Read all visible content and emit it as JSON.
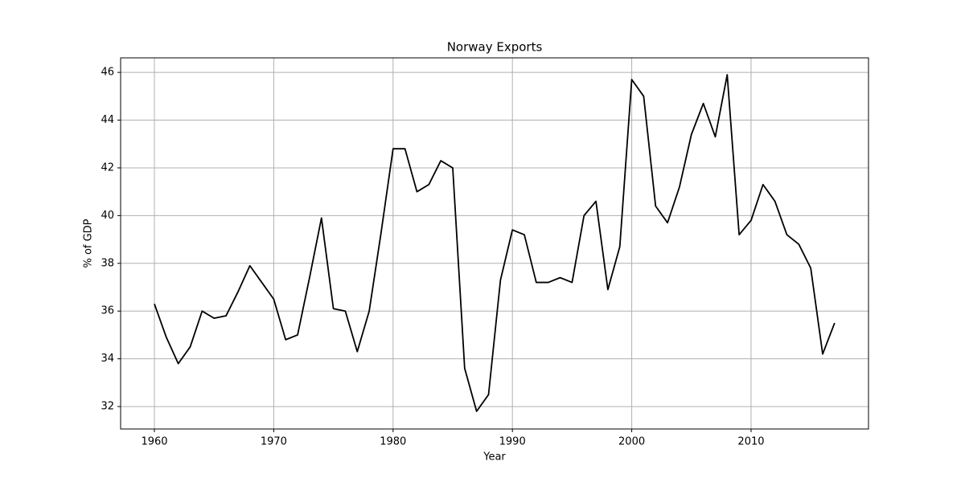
{
  "chart_data": {
    "type": "line",
    "title": "Norway Exports",
    "x_label": "Year",
    "y_label": "% of GDP",
    "x": [
      1960,
      1961,
      1962,
      1963,
      1964,
      1965,
      1966,
      1967,
      1968,
      1969,
      1970,
      1971,
      1972,
      1973,
      1974,
      1975,
      1976,
      1977,
      1978,
      1979,
      1980,
      1981,
      1982,
      1983,
      1984,
      1985,
      1986,
      1987,
      1988,
      1989,
      1990,
      1991,
      1992,
      1993,
      1994,
      1995,
      1996,
      1997,
      1998,
      1999,
      2000,
      2001,
      2002,
      2003,
      2004,
      2005,
      2006,
      2007,
      2008,
      2009,
      2010,
      2011,
      2012,
      2013,
      2014,
      2015,
      2016,
      2017
    ],
    "series": [
      {
        "name": "Exports",
        "color": "#000000",
        "values": [
          36.3,
          34.9,
          33.8,
          34.5,
          36.0,
          35.7,
          35.8,
          36.8,
          37.9,
          37.2,
          36.5,
          34.8,
          35.0,
          37.4,
          39.9,
          36.1,
          36.0,
          34.3,
          36.0,
          39.3,
          42.8,
          42.8,
          41.0,
          41.3,
          42.3,
          42.0,
          33.6,
          31.8,
          32.5,
          37.3,
          39.4,
          39.2,
          37.2,
          37.2,
          37.4,
          37.2,
          40.0,
          40.6,
          36.9,
          38.7,
          45.7,
          45.0,
          40.4,
          39.7,
          41.2,
          43.4,
          44.7,
          43.3,
          45.9,
          39.2,
          39.8,
          41.3,
          40.6,
          39.2,
          38.8,
          37.8,
          34.2,
          35.5
        ]
      }
    ],
    "xlim": [
      1957.17,
      2019.84
    ],
    "ylim": [
      31.06,
      46.61
    ],
    "xticks": [
      1960,
      1970,
      1980,
      1990,
      2000,
      2010
    ],
    "yticks": [
      32,
      34,
      36,
      38,
      40,
      42,
      44,
      46
    ],
    "grid": true
  }
}
